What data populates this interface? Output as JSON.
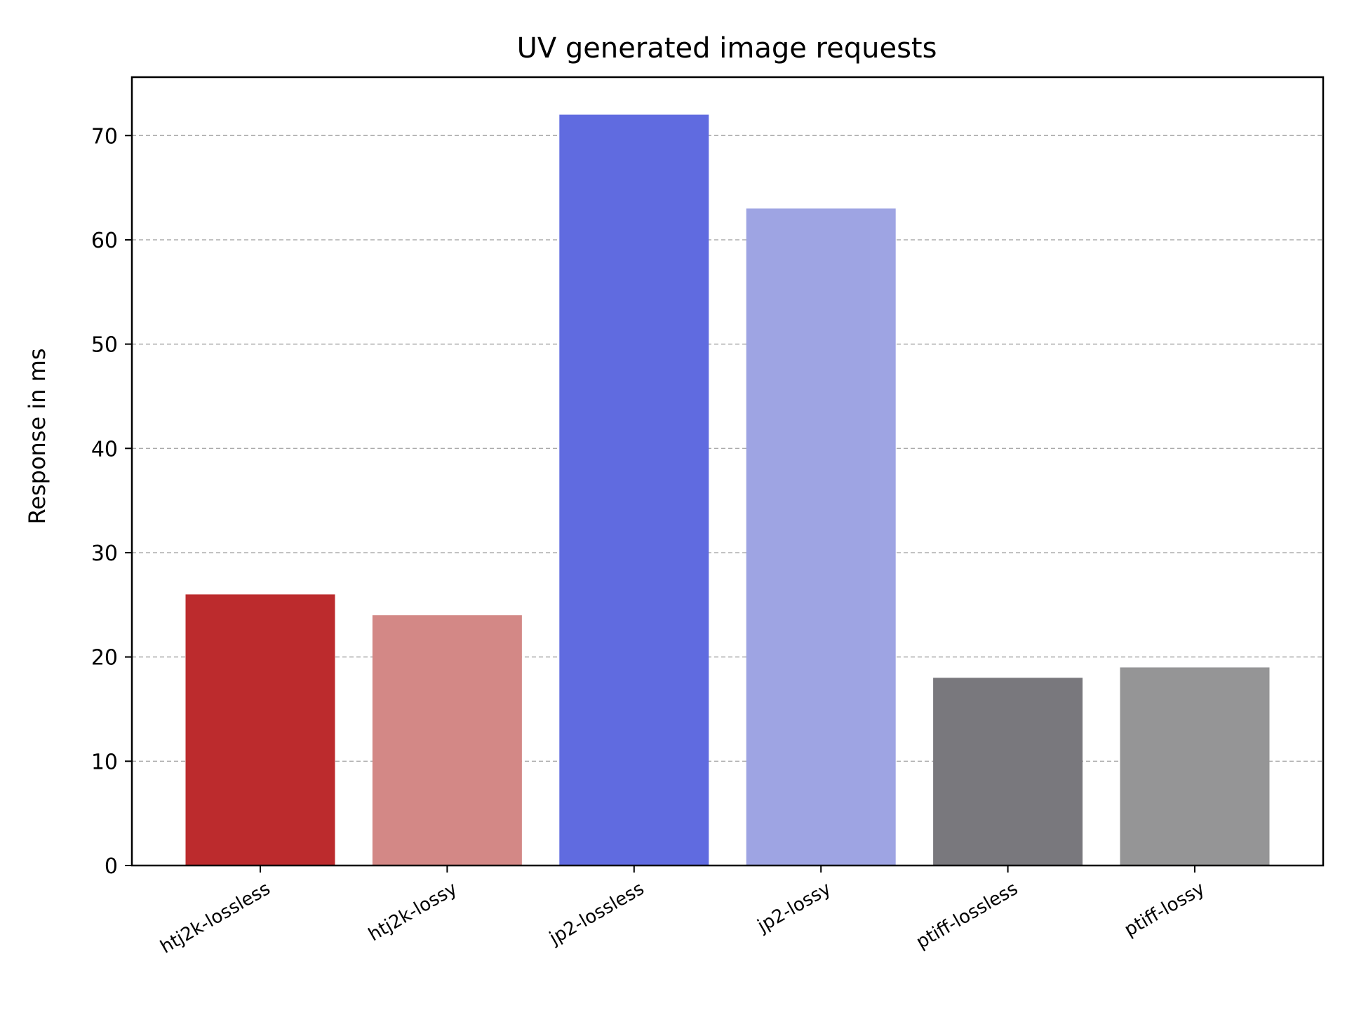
{
  "chart_data": {
    "type": "bar",
    "title": "UV generated image requests",
    "xlabel": "",
    "ylabel": "Response in ms",
    "ylim": [
      0,
      75.6
    ],
    "yticks": [
      0,
      10,
      20,
      30,
      40,
      50,
      60,
      70
    ],
    "grid": true,
    "categories": [
      "htj2k-lossless",
      "htj2k-lossy",
      "jp2-lossless",
      "jp2-lossy",
      "ptiff-lossless",
      "ptiff-lossy"
    ],
    "values": [
      26,
      24,
      72,
      63,
      18,
      19
    ],
    "colors": [
      "#bc2b2d",
      "#d38886",
      "#606be0",
      "#9ea4e3",
      "#79787d",
      "#959596"
    ]
  }
}
